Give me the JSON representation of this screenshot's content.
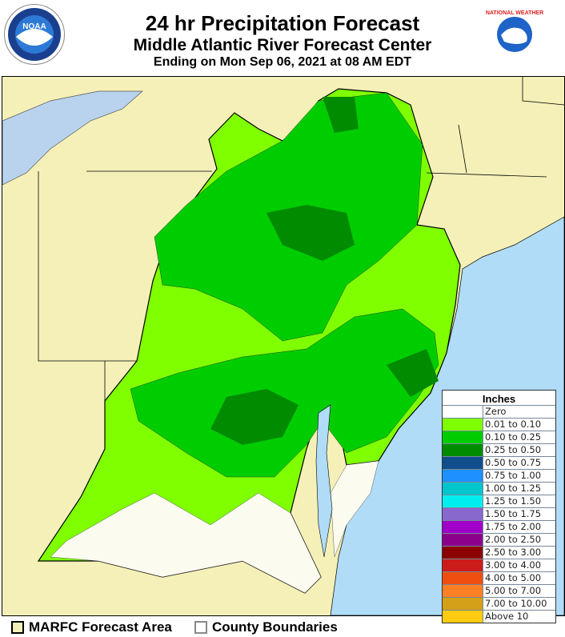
{
  "header": {
    "title": "24 hr Precipitation Forecast",
    "subtitle": "Middle Atlantic River Forecast Center",
    "valid": "Ending on Mon Sep 06, 2021 at 08 AM EDT",
    "left_logo": "NOAA",
    "right_logo": "NATIONAL WEATHER SERVICE"
  },
  "legend": {
    "title": "Inches",
    "items": [
      {
        "label": "Zero",
        "color": "#ffffff"
      },
      {
        "label": "0.01 to 0.10",
        "color": "#7fff00"
      },
      {
        "label": "0.10 to 0.25",
        "color": "#00cd00"
      },
      {
        "label": "0.25 to 0.50",
        "color": "#008b00"
      },
      {
        "label": "0.50 to 0.75",
        "color": "#104e8b"
      },
      {
        "label": "0.75 to 1.00",
        "color": "#1e90ff"
      },
      {
        "label": "1.00 to 1.25",
        "color": "#00c5cd"
      },
      {
        "label": "1.25 to 1.50",
        "color": "#00eeee"
      },
      {
        "label": "1.50 to 1.75",
        "color": "#8968cd"
      },
      {
        "label": "1.75 to 2.00",
        "color": "#a000c8"
      },
      {
        "label": "2.00 to 2.50",
        "color": "#8b008b"
      },
      {
        "label": "2.50 to 3.00",
        "color": "#8b0000"
      },
      {
        "label": "3.00 to 4.00",
        "color": "#cd1a1a"
      },
      {
        "label": "4.00 to 5.00",
        "color": "#ee4f10"
      },
      {
        "label": "5.00 to 7.00",
        "color": "#ff7f24"
      },
      {
        "label": "7.00 to 10.00",
        "color": "#d4a017"
      },
      {
        "label": "Above 10",
        "color": "#ffcc11"
      }
    ]
  },
  "footer": {
    "marfc_label": "MARFC Forecast Area",
    "county_label": "County Boundaries"
  },
  "colors": {
    "land": "#f5f0b8",
    "water": "#b0dcf8",
    "lake": "#b9d3ee",
    "zero": "#fbfbf0"
  }
}
